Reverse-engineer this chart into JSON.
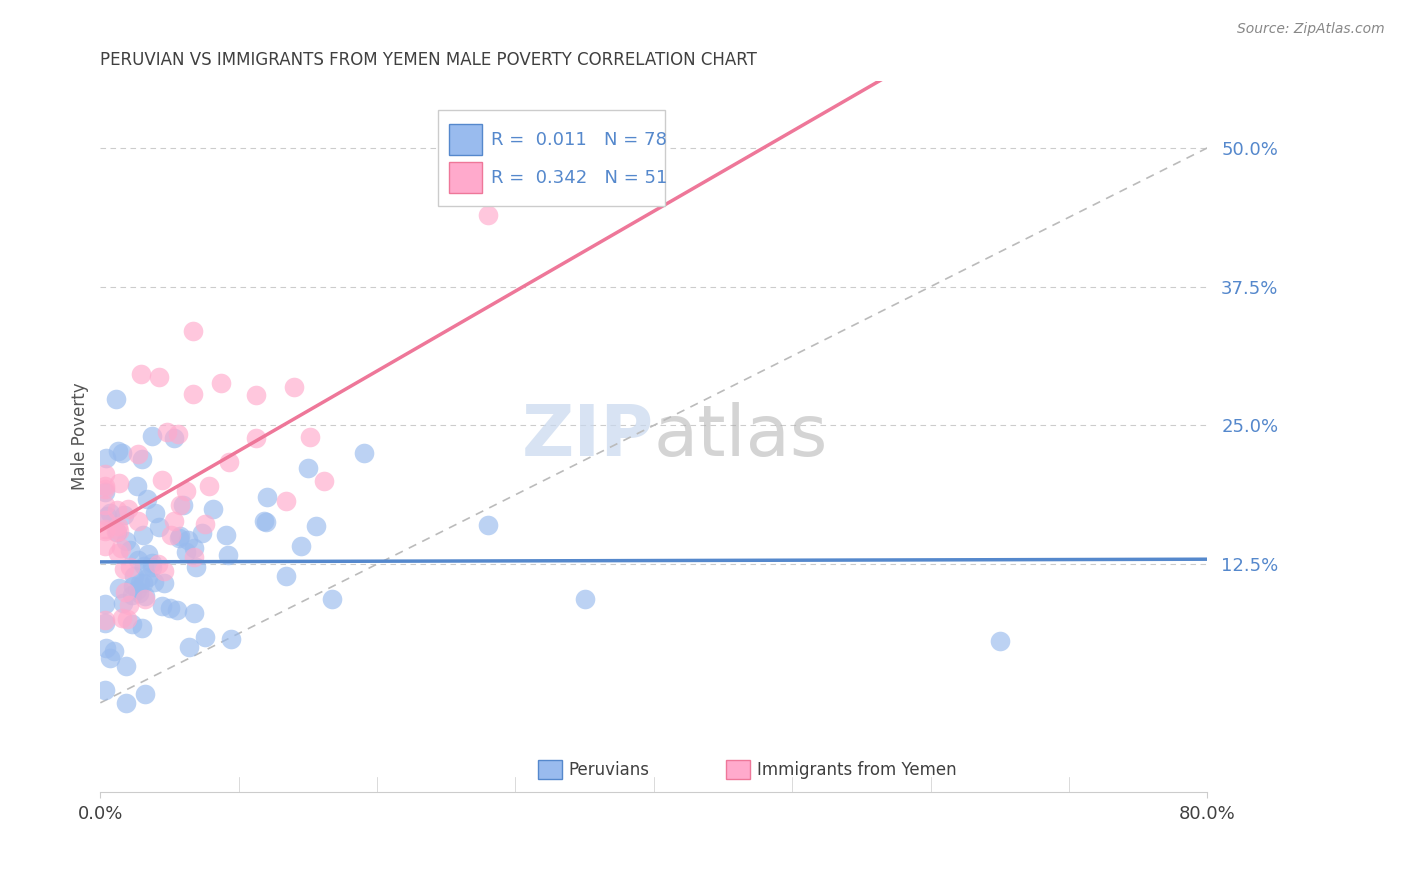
{
  "title": "PERUVIAN VS IMMIGRANTS FROM YEMEN MALE POVERTY CORRELATION CHART",
  "source": "Source: ZipAtlas.com",
  "ylabel": "Male Poverty",
  "ytick_labels": [
    "50.0%",
    "37.5%",
    "25.0%",
    "12.5%"
  ],
  "ytick_values": [
    0.5,
    0.375,
    0.25,
    0.125
  ],
  "xlim": [
    0.0,
    0.8
  ],
  "ylim": [
    -0.08,
    0.56
  ],
  "title_color": "#404040",
  "source_color": "#888888",
  "blue_color": "#5588CC",
  "pink_color": "#EE7799",
  "blue_fill": "#99BBEE",
  "pink_fill": "#FFAACC",
  "R_blue": 0.011,
  "N_blue": 78,
  "R_pink": 0.342,
  "N_pink": 51,
  "grid_color": "#CCCCCC",
  "background_color": "#FFFFFF",
  "legend_label_blue": "Peruvians",
  "legend_label_pink": "Immigrants from Yemen",
  "blue_trend_intercept": 0.127,
  "blue_trend_slope": 0.003,
  "pink_trend_intercept": 0.155,
  "pink_trend_slope": 0.72
}
